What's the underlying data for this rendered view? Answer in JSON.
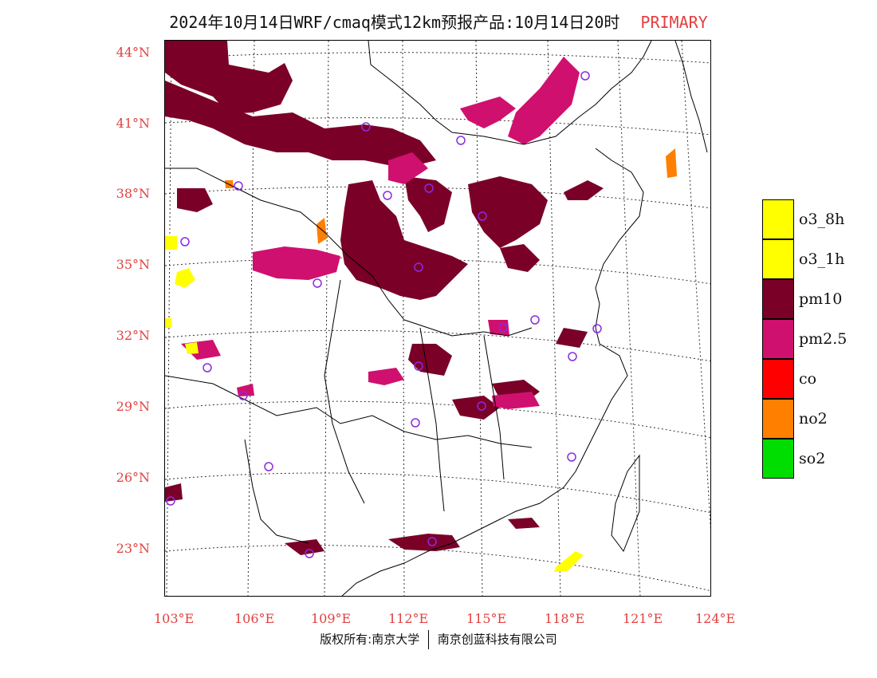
{
  "title": {
    "main": "2024年10月14日WRF/cmaq模式12km预报产品:10月14日20时",
    "tag": "PRIMARY"
  },
  "axes": {
    "lat_labels": [
      "44°N",
      "41°N",
      "38°N",
      "35°N",
      "32°N",
      "29°N",
      "26°N",
      "23°N"
    ],
    "lon_labels": [
      "103°E",
      "106°E",
      "109°E",
      "112°E",
      "115°E",
      "118°E",
      "121°E",
      "124°E"
    ],
    "lat_values": [
      44,
      41,
      38,
      35,
      32,
      29,
      26,
      23
    ],
    "lon_values": [
      103,
      106,
      109,
      112,
      115,
      118,
      121,
      124
    ]
  },
  "legend": [
    {
      "label": "o3_8h",
      "color": "#ffff00"
    },
    {
      "label": "o3_1h",
      "color": "#ffff00"
    },
    {
      "label": "pm10",
      "color": "#7a0028"
    },
    {
      "label": "pm2.5",
      "color": "#d0106e"
    },
    {
      "label": "co",
      "color": "#ff0000"
    },
    {
      "label": "no2",
      "color": "#ff7f00"
    },
    {
      "label": "so2",
      "color": "#00dd00"
    }
  ],
  "footer": {
    "left": "版权所有:南京大学",
    "right": "南京创蓝科技有限公司"
  },
  "colors": {
    "pm10": "#7a0028",
    "pm25": "#d0106e",
    "o3": "#ffff00",
    "no2": "#ff7f00",
    "axis_labels": "#e34040",
    "city_marker": "#8a2be2"
  }
}
